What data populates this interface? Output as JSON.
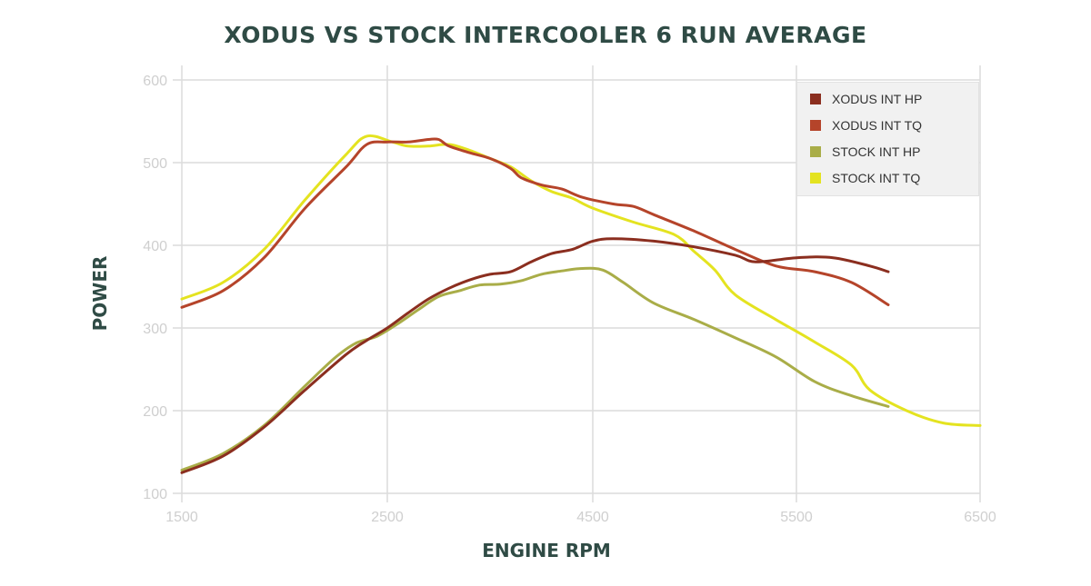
{
  "chart_data": {
    "type": "line",
    "title": "XODUS VS STOCK INTERCOOLER 6 RUN AVERAGE",
    "xlabel": "ENGINE RPM",
    "ylabel": "POWER",
    "xlim": [
      1500,
      6500
    ],
    "ylim": [
      100,
      600
    ],
    "x_ticks": [
      "1500",
      "2500",
      "4500",
      "5500",
      "6500"
    ],
    "y_ticks": [
      "100",
      "200",
      "300",
      "400",
      "500",
      "600"
    ],
    "grid": true,
    "legend_position": "top-right",
    "series": [
      {
        "name": "XODUS INT HP",
        "color": "#8b2e1f",
        "points": [
          [
            1500,
            125
          ],
          [
            1700,
            145
          ],
          [
            1900,
            180
          ],
          [
            2100,
            225
          ],
          [
            2300,
            268
          ],
          [
            2400,
            285
          ],
          [
            2500,
            300
          ],
          [
            2700,
            318
          ],
          [
            2900,
            335
          ],
          [
            3100,
            348
          ],
          [
            3300,
            358
          ],
          [
            3500,
            365
          ],
          [
            3700,
            368
          ],
          [
            3900,
            380
          ],
          [
            4100,
            390
          ],
          [
            4300,
            395
          ],
          [
            4500,
            405
          ],
          [
            4600,
            408
          ],
          [
            4800,
            405
          ],
          [
            5000,
            398
          ],
          [
            5200,
            388
          ],
          [
            5300,
            380
          ],
          [
            5500,
            385
          ],
          [
            5700,
            385
          ],
          [
            5900,
            375
          ],
          [
            6000,
            368
          ]
        ]
      },
      {
        "name": "XODUS INT TQ",
        "color": "#b5442a",
        "points": [
          [
            1500,
            325
          ],
          [
            1700,
            345
          ],
          [
            1900,
            385
          ],
          [
            2100,
            445
          ],
          [
            2300,
            495
          ],
          [
            2400,
            522
          ],
          [
            2500,
            525
          ],
          [
            2700,
            525
          ],
          [
            2900,
            528
          ],
          [
            3000,
            528
          ],
          [
            3100,
            520
          ],
          [
            3300,
            512
          ],
          [
            3500,
            505
          ],
          [
            3700,
            493
          ],
          [
            3800,
            482
          ],
          [
            4000,
            473
          ],
          [
            4200,
            468
          ],
          [
            4400,
            458
          ],
          [
            4600,
            450
          ],
          [
            4700,
            447
          ],
          [
            4800,
            437
          ],
          [
            5000,
            417
          ],
          [
            5200,
            395
          ],
          [
            5400,
            375
          ],
          [
            5600,
            368
          ],
          [
            5800,
            355
          ],
          [
            6000,
            328
          ]
        ]
      },
      {
        "name": "STOCK INT HP",
        "color": "#a9ad48",
        "points": [
          [
            1500,
            128
          ],
          [
            1700,
            148
          ],
          [
            1900,
            182
          ],
          [
            2100,
            230
          ],
          [
            2250,
            265
          ],
          [
            2350,
            282
          ],
          [
            2450,
            290
          ],
          [
            2600,
            305
          ],
          [
            2800,
            322
          ],
          [
            3000,
            338
          ],
          [
            3200,
            345
          ],
          [
            3400,
            352
          ],
          [
            3600,
            353
          ],
          [
            3800,
            357
          ],
          [
            4000,
            365
          ],
          [
            4200,
            369
          ],
          [
            4400,
            372
          ],
          [
            4550,
            370
          ],
          [
            4650,
            355
          ],
          [
            4800,
            330
          ],
          [
            5000,
            310
          ],
          [
            5200,
            288
          ],
          [
            5400,
            265
          ],
          [
            5600,
            235
          ],
          [
            5800,
            218
          ],
          [
            6000,
            205
          ]
        ]
      },
      {
        "name": "STOCK INT TQ",
        "color": "#e4e320",
        "points": [
          [
            1500,
            335
          ],
          [
            1700,
            355
          ],
          [
            1900,
            395
          ],
          [
            2100,
            455
          ],
          [
            2300,
            510
          ],
          [
            2400,
            532
          ],
          [
            2550,
            525
          ],
          [
            2700,
            520
          ],
          [
            2900,
            520
          ],
          [
            3100,
            522
          ],
          [
            3300,
            515
          ],
          [
            3500,
            505
          ],
          [
            3700,
            495
          ],
          [
            3900,
            478
          ],
          [
            4100,
            465
          ],
          [
            4300,
            457
          ],
          [
            4500,
            445
          ],
          [
            4700,
            428
          ],
          [
            4900,
            413
          ],
          [
            5000,
            392
          ],
          [
            5100,
            370
          ],
          [
            5200,
            340
          ],
          [
            5400,
            310
          ],
          [
            5600,
            283
          ],
          [
            5800,
            255
          ],
          [
            5900,
            225
          ],
          [
            6100,
            200
          ],
          [
            6300,
            185
          ],
          [
            6500,
            182
          ]
        ]
      }
    ]
  }
}
